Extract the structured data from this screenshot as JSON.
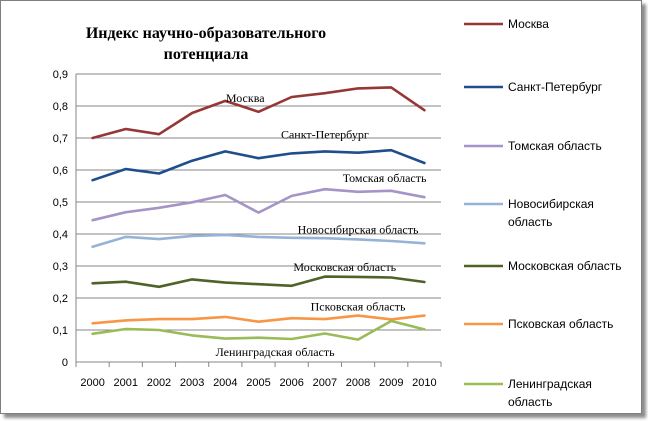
{
  "chart_data": {
    "type": "line",
    "title": [
      "Индекс научно-образовательного",
      "потенциала"
    ],
    "x": [
      "2000",
      "2001",
      "2002",
      "2003",
      "2004",
      "2005",
      "2006",
      "2007",
      "2008",
      "2009",
      "2010"
    ],
    "ylim": [
      0,
      0.9
    ],
    "yticks": [
      {
        "value": 0,
        "label": "0"
      },
      {
        "value": 0.1,
        "label": "0,1"
      },
      {
        "value": 0.2,
        "label": "0,2"
      },
      {
        "value": 0.3,
        "label": "0,3"
      },
      {
        "value": 0.4,
        "label": "0,4"
      },
      {
        "value": 0.5,
        "label": "0,5"
      },
      {
        "value": 0.6,
        "label": "0,6"
      },
      {
        "value": 0.7,
        "label": "0,7"
      },
      {
        "value": 0.8,
        "label": "0,8"
      },
      {
        "value": 0.9,
        "label": "0,9"
      }
    ],
    "grid": true,
    "legend_position": "right",
    "series": [
      {
        "name": "Москва",
        "legend": [
          "Москва"
        ],
        "color": "#953735",
        "values": [
          0.7,
          0.728,
          0.712,
          0.778,
          0.816,
          0.782,
          0.828,
          0.84,
          0.855,
          0.858,
          0.787
        ]
      },
      {
        "name": "Санкт-Петербург",
        "legend": [
          "Санкт-Петербург"
        ],
        "color": "#1f4e8c",
        "values": [
          0.568,
          0.603,
          0.589,
          0.629,
          0.658,
          0.637,
          0.652,
          0.658,
          0.654,
          0.662,
          0.622
        ]
      },
      {
        "name": "Томская область",
        "legend": [
          "Томская область"
        ],
        "color": "#a594c8",
        "values": [
          0.443,
          0.468,
          0.482,
          0.499,
          0.522,
          0.467,
          0.519,
          0.54,
          0.532,
          0.535,
          0.515
        ]
      },
      {
        "name": "Новосибирская область",
        "legend": [
          "Новосибирская",
          "область"
        ],
        "color": "#95b3d7",
        "values": [
          0.36,
          0.391,
          0.384,
          0.394,
          0.397,
          0.391,
          0.388,
          0.387,
          0.383,
          0.378,
          0.371
        ]
      },
      {
        "name": "Московская область",
        "legend": [
          "Московская область"
        ],
        "color": "#4f6228",
        "values": [
          0.246,
          0.251,
          0.235,
          0.258,
          0.248,
          0.243,
          0.238,
          0.267,
          0.266,
          0.264,
          0.25
        ]
      },
      {
        "name": "Псковская область",
        "legend": [
          "Псковская область"
        ],
        "color": "#f79646",
        "values": [
          0.121,
          0.13,
          0.134,
          0.134,
          0.141,
          0.126,
          0.137,
          0.134,
          0.145,
          0.133,
          0.145
        ]
      },
      {
        "name": "Ленинградская область",
        "legend": [
          "Ленинградская",
          "область"
        ],
        "color": "#9bbb59",
        "values": [
          0.088,
          0.103,
          0.1,
          0.083,
          0.073,
          0.076,
          0.072,
          0.089,
          0.07,
          0.128,
          0.102
        ]
      }
    ],
    "annotations": [
      "Москва",
      "Санкт-Петербург",
      "Томская область",
      "Новосибирская область",
      "Московская область",
      "Псковская область",
      "Ленинградская область"
    ]
  }
}
